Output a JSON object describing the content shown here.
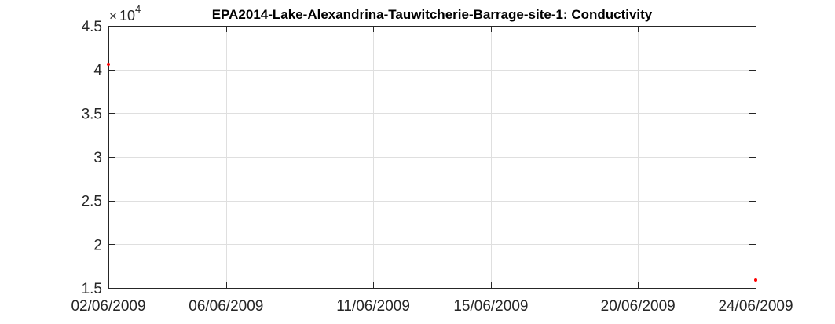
{
  "chart_data": {
    "type": "scatter",
    "title": "EPA2014-Lake-Alexandrina-Tauwitcherie-Barrage-site-1: Conductivity",
    "xlabel": "",
    "ylabel": "",
    "y_multiplier": {
      "base": "10",
      "exponent": "4"
    },
    "xlim": [
      "2009-06-02",
      "2009-06-24"
    ],
    "ylim": [
      1.5,
      4.5
    ],
    "x_ticks": [
      {
        "date": "2009-06-02",
        "label": "02/06/2009"
      },
      {
        "date": "2009-06-06",
        "label": "06/06/2009"
      },
      {
        "date": "2009-06-11",
        "label": "11/06/2009"
      },
      {
        "date": "2009-06-15",
        "label": "15/06/2009"
      },
      {
        "date": "2009-06-20",
        "label": "20/06/2009"
      },
      {
        "date": "2009-06-24",
        "label": "24/06/2009"
      }
    ],
    "y_ticks": [
      {
        "value": 1.5,
        "label": "1.5"
      },
      {
        "value": 2,
        "label": "2"
      },
      {
        "value": 2.5,
        "label": "2.5"
      },
      {
        "value": 3,
        "label": "3"
      },
      {
        "value": 3.5,
        "label": "3.5"
      },
      {
        "value": 4,
        "label": "4"
      },
      {
        "value": 4.5,
        "label": "4.5"
      }
    ],
    "grid": true,
    "series": [
      {
        "color": "#ff0000",
        "points": [
          {
            "x": "2009-06-02",
            "y": 4.06
          },
          {
            "x": "2009-06-24",
            "y": 1.59
          }
        ]
      }
    ]
  }
}
